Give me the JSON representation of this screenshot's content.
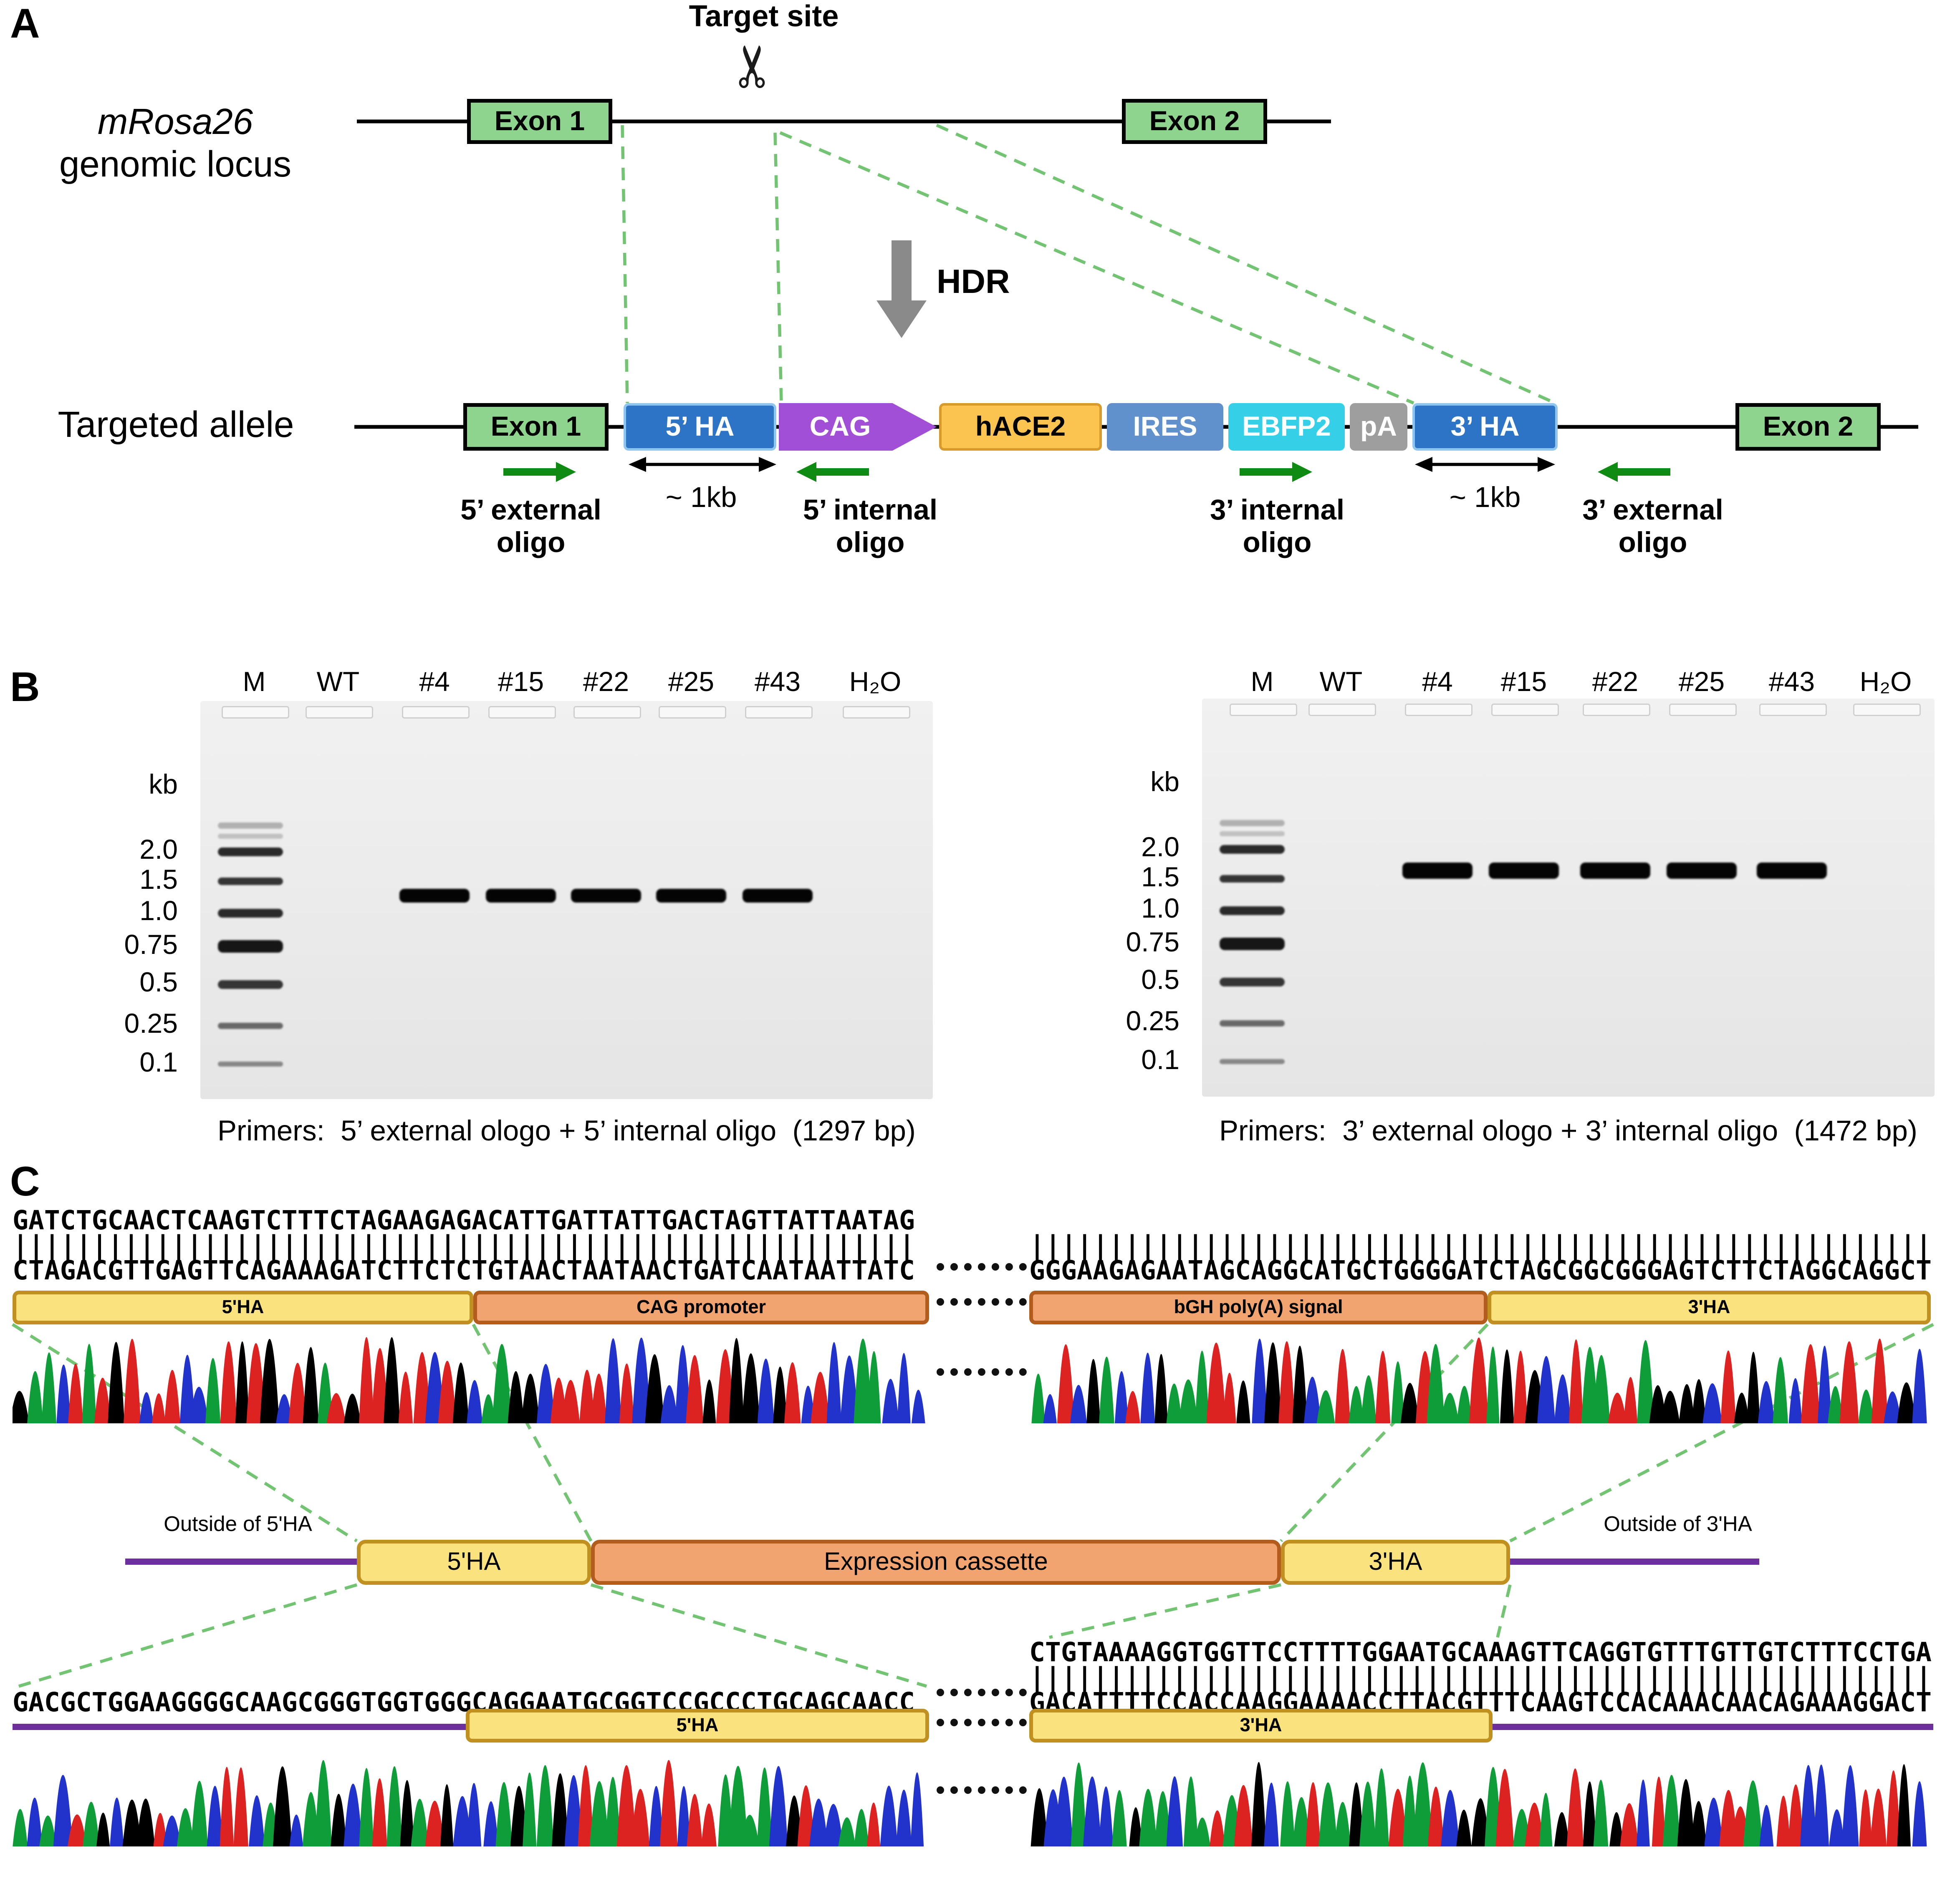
{
  "icons": {
    "scissors": "✂"
  },
  "colors": {
    "exon_green": "#8ed48e",
    "ha_blue": "#2e74c6",
    "cag_purple": "#a24fd8",
    "hace2_yellow": "#fbc450",
    "ires_blue": "#6191cd",
    "ebfp2_cyan": "#36cfe8",
    "pa_gray": "#9e9e9e",
    "primer_green": "#0f8a12",
    "dashed_green": "#72c472",
    "ha_box_yellow": "#fae37e",
    "cassette_orange": "#f2a470",
    "purple_line": "#6e2f9e",
    "chromatogram": {
      "A": "#0f9d3a",
      "C": "#2233cc",
      "G": "#000000",
      "T": "#dd2222"
    }
  },
  "panelA": {
    "label": "A",
    "target_site": "Target site",
    "locus_name": "mRosa26",
    "locus_caption": "genomic locus",
    "hdr_label": "HDR",
    "allele_label": "Targeted allele",
    "exon1_top": "Exon 1",
    "exon2_top": "Exon 2",
    "construct": {
      "exon1": "Exon 1",
      "ha5": "5’ HA",
      "cag": "CAG",
      "hace2": "hACE2",
      "ires": "IRES",
      "ebfp2": "EBFP2",
      "pa": "pA",
      "ha3": "3’ HA",
      "exon2": "Exon 2"
    },
    "kb5": "~ 1kb",
    "kb3": "~ 1kb",
    "primers": {
      "ext5": {
        "line1": "5’ external",
        "line2": "oligo"
      },
      "int5": {
        "line1": "5’ internal",
        "line2": "oligo"
      },
      "int3": {
        "line1": "3’ internal",
        "line2": "oligo"
      },
      "ext3": {
        "line1": "3’ external",
        "line2": "oligo"
      }
    }
  },
  "panelB": {
    "label": "B",
    "gels": [
      {
        "lanes": [
          "M",
          "WT",
          "#4",
          "#15",
          "#22",
          "#25",
          "#43",
          "H₂O"
        ],
        "kb_unit": "kb",
        "ladder_labels": [
          "2.0",
          "1.5",
          "1.0",
          "0.75",
          "0.5",
          "0.25",
          "0.1"
        ],
        "positive_lanes": [
          "#4",
          "#15",
          "#22",
          "#25",
          "#43"
        ],
        "product_bp": 1297,
        "caption": "Primers:  5’ external ologo + 5’ internal oligo  (1297 bp)"
      },
      {
        "lanes": [
          "M",
          "WT",
          "#4",
          "#15",
          "#22",
          "#25",
          "#43",
          "H₂O"
        ],
        "kb_unit": "kb",
        "ladder_labels": [
          "2.0",
          "1.5",
          "1.0",
          "0.75",
          "0.5",
          "0.25",
          "0.1"
        ],
        "positive_lanes": [
          "#4",
          "#15",
          "#22",
          "#25",
          "#43"
        ],
        "product_bp": 1472,
        "caption": "Primers:  3’ external ologo + 3’ internal oligo  (1472 bp)"
      }
    ]
  },
  "panelC": {
    "label": "C",
    "junction_5_top": {
      "strand1": "GATCTGCAACTCAAGTCTTTCTAGAAGAGACATTGATTATTGACTAGTTATTAATAG",
      "strand2": "CTAGACGTTGAGTTCAGAAAGATCTTCTCTGTAACTAATAACTGATCAATAATTATC",
      "box1": "5'HA",
      "box2": "CAG promoter"
    },
    "junction_3_top": {
      "strand": "GGGAAGAGAATAGCAGGCATGCTGGGGATCTAGCGGCGGGAGTCTTCTAGGCAGGCT",
      "box1": "bGH poly(A) signal",
      "box2": "3'HA"
    },
    "map": {
      "outside5": "Outside of 5'HA",
      "ha5": "5'HA",
      "cassette": "Expression cassette",
      "ha3": "3'HA",
      "outside3": "Outside of 3'HA"
    },
    "junction_5_bottom": {
      "strand": "GACGCTGGAAGGGGCAAGCGGGTGGTGGGCAGGAATGCGGTCCGCCCTGCAGCAACC",
      "box": "5'HA"
    },
    "junction_3_bottom": {
      "strand1": "CTGTAAAAGGTGGTTCCTTTTGGAATGCAAAGTTCAGGTGTTTGTTGTCTTTCCTGA",
      "strand2": "GACATTTTCCACCAAGGAAAACCTTACGTTTCAAGTCCACAAACAACAGAAAGGACT",
      "box": "3'HA"
    }
  }
}
